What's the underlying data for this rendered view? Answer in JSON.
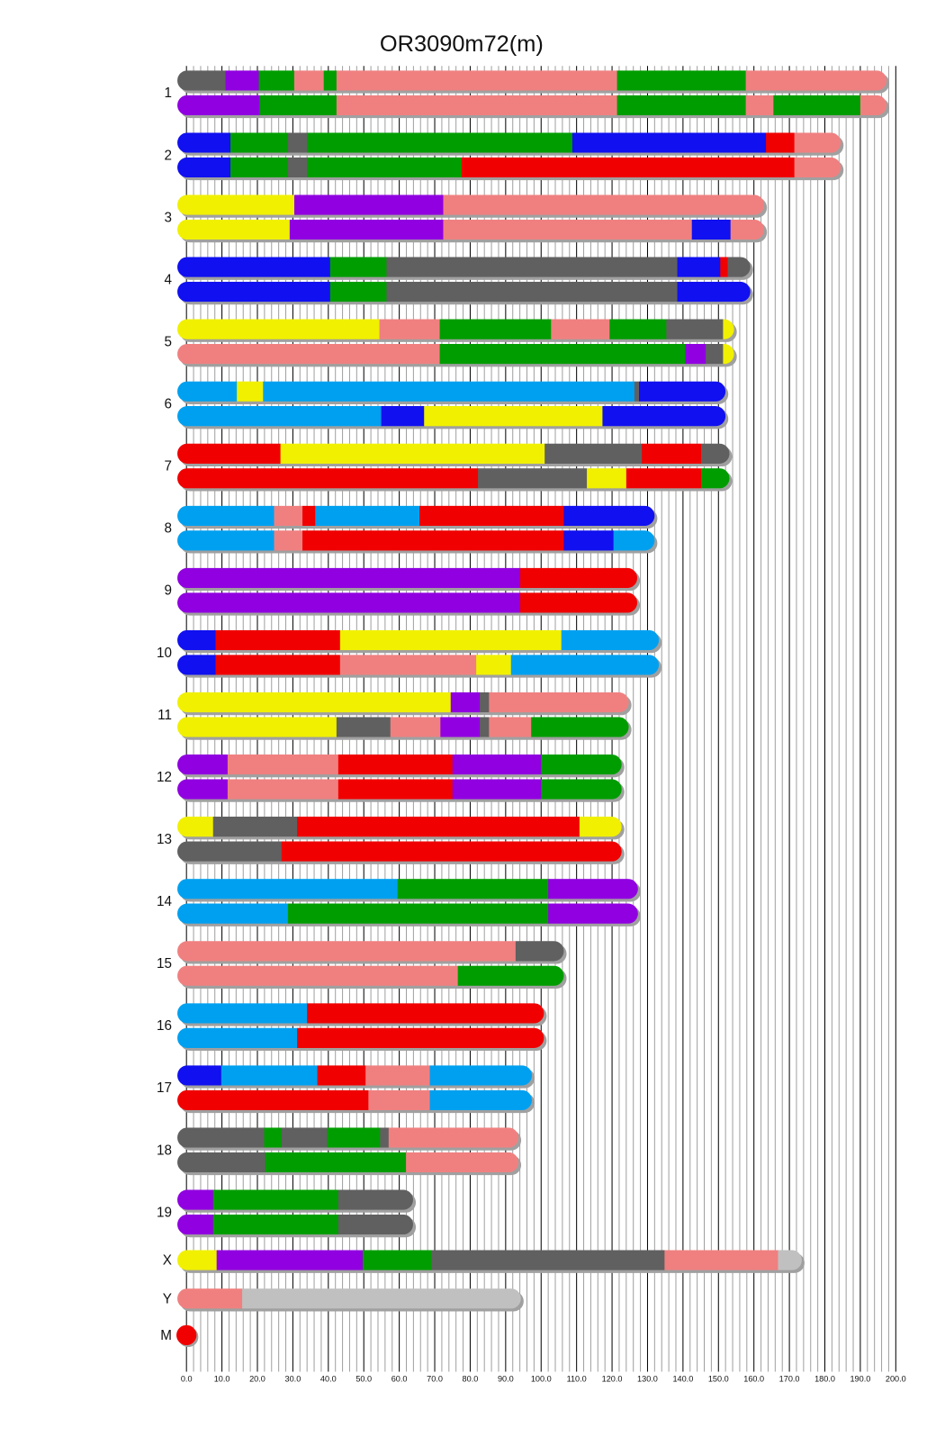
{
  "chart_data": {
    "type": "chromosome-painting",
    "title": "OR3090m72(m)",
    "xlim": [
      0,
      200
    ],
    "x_ticks": [
      "0.0",
      "10.0",
      "20.0",
      "30.0",
      "40.0",
      "50.0",
      "60.0",
      "70.0",
      "80.0",
      "90.0",
      "100.0",
      "110.0",
      "120.0",
      "130.0",
      "140.0",
      "150.0",
      "160.0",
      "170.0",
      "180.0",
      "190.0",
      "200.0"
    ],
    "grid": {
      "major_every": 10,
      "minor_every": 2
    },
    "palette": {
      "gray": "#606060",
      "purple": "#9000e0",
      "green": "#009d00",
      "salmon": "#f08080",
      "red": "#f00000",
      "blue": "#1010f0",
      "lightblue": "#00a0f0",
      "yellow": "#f0f000",
      "lightgray": "#c0c0c0"
    },
    "chromosomes": [
      {
        "name": "1",
        "haplotypes": [
          [
            [
              0,
              11,
              "gray"
            ],
            [
              11,
              20.4,
              "purple"
            ],
            [
              20.4,
              30.4,
              "green"
            ],
            [
              30.4,
              38.7,
              "salmon"
            ],
            [
              38.7,
              42.3,
              "green"
            ],
            [
              42.3,
              121.4,
              "salmon"
            ],
            [
              121.4,
              157.7,
              "green"
            ],
            [
              157.7,
              197.4,
              "salmon"
            ]
          ],
          [
            [
              0,
              20.6,
              "purple"
            ],
            [
              20.6,
              42.3,
              "green"
            ],
            [
              42.3,
              121.4,
              "salmon"
            ],
            [
              121.4,
              157.7,
              "green"
            ],
            [
              157.7,
              165.5,
              "salmon"
            ],
            [
              165.5,
              190,
              "green"
            ],
            [
              190,
              197.4,
              "salmon"
            ]
          ]
        ]
      },
      {
        "name": "2",
        "haplotypes": [
          [
            [
              0,
              12.4,
              "blue"
            ],
            [
              12.4,
              28.6,
              "green"
            ],
            [
              28.6,
              34,
              "gray"
            ],
            [
              34,
              108.8,
              "green"
            ],
            [
              108.8,
              163.4,
              "blue"
            ],
            [
              163.4,
              171.4,
              "red"
            ],
            [
              171.4,
              184.5,
              "salmon"
            ]
          ],
          [
            [
              0,
              12.4,
              "blue"
            ],
            [
              12.4,
              28.6,
              "green"
            ],
            [
              28.6,
              34,
              "gray"
            ],
            [
              34,
              77.6,
              "green"
            ],
            [
              77.6,
              171.4,
              "red"
            ],
            [
              171.4,
              184.5,
              "salmon"
            ]
          ]
        ]
      },
      {
        "name": "3",
        "haplotypes": [
          [
            [
              0,
              30.4,
              "yellow"
            ],
            [
              30.4,
              72.4,
              "purple"
            ],
            [
              72.4,
              162.9,
              "salmon"
            ]
          ],
          [
            [
              0,
              29.1,
              "yellow"
            ],
            [
              29.1,
              72.4,
              "purple"
            ],
            [
              72.4,
              142.5,
              "salmon"
            ],
            [
              142.5,
              153.4,
              "blue"
            ],
            [
              153.4,
              162.9,
              "salmon"
            ]
          ]
        ]
      },
      {
        "name": "4",
        "haplotypes": [
          [
            [
              0,
              40.5,
              "blue"
            ],
            [
              40.5,
              56.4,
              "green"
            ],
            [
              56.4,
              138.4,
              "gray"
            ],
            [
              138.4,
              150.5,
              "blue"
            ],
            [
              150.5,
              152.6,
              "red"
            ],
            [
              152.6,
              159,
              "gray"
            ]
          ],
          [
            [
              0,
              40.5,
              "blue"
            ],
            [
              40.5,
              56.4,
              "green"
            ],
            [
              56.4,
              138.4,
              "gray"
            ],
            [
              138.4,
              159,
              "blue"
            ]
          ]
        ]
      },
      {
        "name": "5",
        "haplotypes": [
          [
            [
              0,
              54.4,
              "yellow"
            ],
            [
              54.4,
              71.4,
              "salmon"
            ],
            [
              71.4,
              102.8,
              "green"
            ],
            [
              102.8,
              119.3,
              "salmon"
            ],
            [
              119.3,
              135.3,
              "green"
            ],
            [
              135.3,
              151.3,
              "gray"
            ],
            [
              151.3,
              154.4,
              "yellow"
            ]
          ],
          [
            [
              0,
              71.4,
              "salmon"
            ],
            [
              71.4,
              140.7,
              "green"
            ],
            [
              140.7,
              146.4,
              "purple"
            ],
            [
              146.4,
              151.3,
              "gray"
            ],
            [
              151.3,
              154.4,
              "yellow"
            ]
          ]
        ]
      },
      {
        "name": "6",
        "haplotypes": [
          [
            [
              0,
              14.2,
              "lightblue"
            ],
            [
              14.2,
              21.6,
              "yellow"
            ],
            [
              21.6,
              126.3,
              "lightblue"
            ],
            [
              126.3,
              127.6,
              "gray"
            ],
            [
              127.6,
              152,
              "blue"
            ]
          ],
          [
            [
              0,
              54.9,
              "lightblue"
            ],
            [
              54.9,
              67,
              "blue"
            ],
            [
              67,
              117.3,
              "yellow"
            ],
            [
              117.3,
              152,
              "blue"
            ]
          ]
        ]
      },
      {
        "name": "7",
        "haplotypes": [
          [
            [
              0,
              26.5,
              "red"
            ],
            [
              26.5,
              101,
              "yellow"
            ],
            [
              101,
              128.4,
              "gray"
            ],
            [
              128.4,
              145.1,
              "red"
            ],
            [
              145.1,
              153.1,
              "gray"
            ]
          ],
          [
            [
              0,
              82.2,
              "red"
            ],
            [
              82.2,
              112.9,
              "gray"
            ],
            [
              112.9,
              124,
              "yellow"
            ],
            [
              124,
              145.1,
              "red"
            ],
            [
              145.1,
              153.1,
              "green"
            ]
          ]
        ]
      },
      {
        "name": "8",
        "haplotypes": [
          [
            [
              0,
              24.7,
              "lightblue"
            ],
            [
              24.7,
              32.7,
              "salmon"
            ],
            [
              32.7,
              36.3,
              "red"
            ],
            [
              36.3,
              65.7,
              "lightblue"
            ],
            [
              65.7,
              106.4,
              "red"
            ],
            [
              106.4,
              132,
              "blue"
            ]
          ],
          [
            [
              0,
              24.7,
              "lightblue"
            ],
            [
              24.7,
              32.7,
              "salmon"
            ],
            [
              32.7,
              106.4,
              "red"
            ],
            [
              106.4,
              120.4,
              "blue"
            ],
            [
              120.4,
              132,
              "lightblue"
            ]
          ]
        ]
      },
      {
        "name": "9",
        "haplotypes": [
          [
            [
              0,
              94.1,
              "purple"
            ],
            [
              94.1,
              127.1,
              "red"
            ]
          ],
          [
            [
              0,
              94.1,
              "purple"
            ],
            [
              94.1,
              127.1,
              "red"
            ]
          ]
        ]
      },
      {
        "name": "10",
        "haplotypes": [
          [
            [
              0,
              8.2,
              "blue"
            ],
            [
              8.2,
              43.3,
              "red"
            ],
            [
              43.3,
              105.7,
              "yellow"
            ],
            [
              105.7,
              133.2,
              "lightblue"
            ]
          ],
          [
            [
              0,
              8.2,
              "blue"
            ],
            [
              8.2,
              43.3,
              "red"
            ],
            [
              43.3,
              81.7,
              "salmon"
            ],
            [
              81.7,
              91.5,
              "yellow"
            ],
            [
              91.5,
              133.2,
              "lightblue"
            ]
          ]
        ]
      },
      {
        "name": "11",
        "haplotypes": [
          [
            [
              0,
              74.5,
              "yellow"
            ],
            [
              74.5,
              82.7,
              "purple"
            ],
            [
              82.7,
              85.3,
              "gray"
            ],
            [
              85.3,
              124.7,
              "salmon"
            ]
          ],
          [
            [
              0,
              42.3,
              "yellow"
            ],
            [
              42.3,
              57.5,
              "gray"
            ],
            [
              57.5,
              71.6,
              "salmon"
            ],
            [
              71.6,
              82.7,
              "purple"
            ],
            [
              82.7,
              85.3,
              "gray"
            ],
            [
              85.3,
              97.2,
              "salmon"
            ],
            [
              97.2,
              124.7,
              "green"
            ]
          ]
        ]
      },
      {
        "name": "12",
        "haplotypes": [
          [
            [
              0,
              11.6,
              "purple"
            ],
            [
              11.6,
              42.8,
              "salmon"
            ],
            [
              42.8,
              75,
              "red"
            ],
            [
              75,
              100,
              "purple"
            ],
            [
              100,
              122.7,
              "green"
            ]
          ],
          [
            [
              0,
              11.6,
              "purple"
            ],
            [
              11.6,
              42.8,
              "salmon"
            ],
            [
              42.8,
              75,
              "red"
            ],
            [
              75,
              100,
              "purple"
            ],
            [
              100,
              122.7,
              "green"
            ]
          ]
        ]
      },
      {
        "name": "13",
        "haplotypes": [
          [
            [
              0,
              7.5,
              "yellow"
            ],
            [
              7.5,
              31.2,
              "gray"
            ],
            [
              31.2,
              110.8,
              "red"
            ],
            [
              110.8,
              122.7,
              "yellow"
            ]
          ],
          [
            [
              0,
              26.8,
              "gray"
            ],
            [
              26.8,
              122.7,
              "red"
            ]
          ]
        ]
      },
      {
        "name": "14",
        "haplotypes": [
          [
            [
              0,
              59.5,
              "lightblue"
            ],
            [
              59.5,
              102,
              "green"
            ],
            [
              102,
              127.3,
              "purple"
            ]
          ],
          [
            [
              0,
              28.6,
              "lightblue"
            ],
            [
              28.6,
              102,
              "green"
            ],
            [
              102,
              127.3,
              "purple"
            ]
          ]
        ]
      },
      {
        "name": "15",
        "haplotypes": [
          [
            [
              0,
              92.8,
              "salmon"
            ],
            [
              92.8,
              106.4,
              "gray"
            ]
          ],
          [
            [
              0,
              76.5,
              "salmon"
            ],
            [
              76.5,
              106.4,
              "green"
            ]
          ]
        ]
      },
      {
        "name": "16",
        "haplotypes": [
          [
            [
              0,
              34,
              "lightblue"
            ],
            [
              34,
              100.8,
              "red"
            ]
          ],
          [
            [
              0,
              31.2,
              "lightblue"
            ],
            [
              31.2,
              100.8,
              "red"
            ]
          ]
        ]
      },
      {
        "name": "17",
        "haplotypes": [
          [
            [
              0,
              9.8,
              "blue"
            ],
            [
              9.8,
              36.9,
              "lightblue"
            ],
            [
              36.9,
              50.5,
              "red"
            ],
            [
              50.5,
              68.6,
              "salmon"
            ],
            [
              68.6,
              97.4,
              "lightblue"
            ]
          ],
          [
            [
              0,
              51.3,
              "red"
            ],
            [
              51.3,
              68.6,
              "salmon"
            ],
            [
              68.6,
              97.4,
              "lightblue"
            ]
          ]
        ]
      },
      {
        "name": "18",
        "haplotypes": [
          [
            [
              0,
              21.9,
              "gray"
            ],
            [
              21.9,
              26.8,
              "green"
            ],
            [
              26.8,
              39.7,
              "gray"
            ],
            [
              39.7,
              54.6,
              "green"
            ],
            [
              54.6,
              57,
              "gray"
            ],
            [
              57,
              93.6,
              "salmon"
            ]
          ],
          [
            [
              0,
              22.2,
              "gray"
            ],
            [
              22.2,
              61.9,
              "green"
            ],
            [
              61.9,
              93.6,
              "salmon"
            ]
          ]
        ]
      },
      {
        "name": "19",
        "haplotypes": [
          [
            [
              0,
              7.5,
              "purple"
            ],
            [
              7.5,
              42.8,
              "green"
            ],
            [
              42.8,
              63.9,
              "gray"
            ]
          ],
          [
            [
              0,
              7.5,
              "purple"
            ],
            [
              7.5,
              42.8,
              "green"
            ],
            [
              42.8,
              63.9,
              "gray"
            ]
          ]
        ]
      },
      {
        "name": "X",
        "haplotypes": [
          [
            [
              0,
              8.5,
              "yellow"
            ],
            [
              8.5,
              49.7,
              "purple"
            ],
            [
              49.7,
              69.1,
              "green"
            ],
            [
              69.1,
              134.8,
              "gray"
            ],
            [
              134.8,
              166.8,
              "salmon"
            ],
            [
              166.8,
              173.5,
              "lightgray"
            ]
          ]
        ]
      },
      {
        "name": "Y",
        "haplotypes": [
          [
            [
              0,
              15.7,
              "salmon"
            ],
            [
              15.7,
              94.3,
              "lightgray"
            ]
          ]
        ]
      },
      {
        "name": "M",
        "haplotypes": [
          [
            [
              0,
              0.5,
              "red"
            ]
          ]
        ]
      }
    ]
  }
}
